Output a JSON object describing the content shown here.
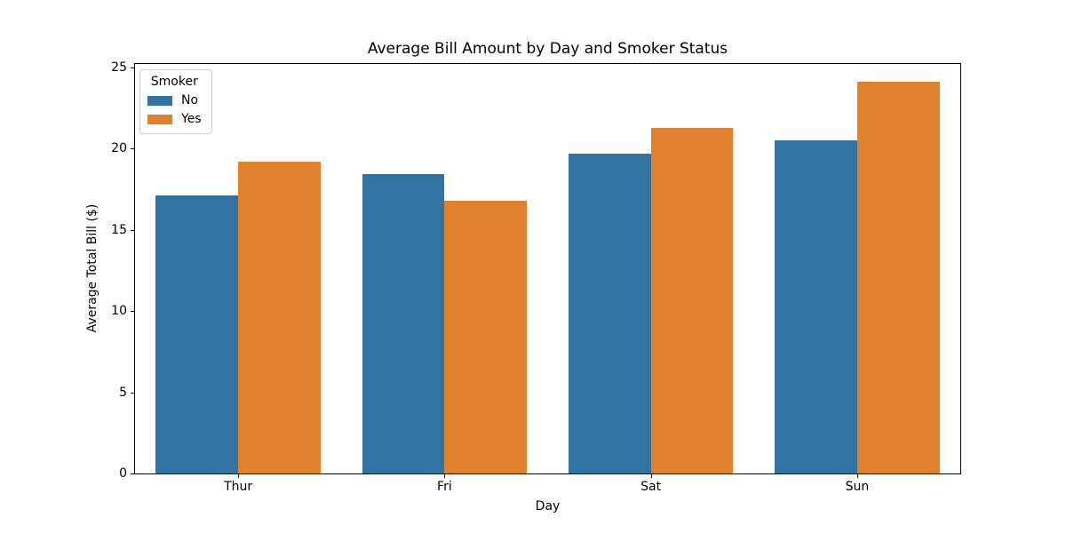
{
  "chart_data": {
    "type": "bar",
    "title": "Average Bill Amount by Day and Smoker Status",
    "xlabel": "Day",
    "ylabel": "Average Total Bill ($)",
    "categories": [
      "Thur",
      "Fri",
      "Sat",
      "Sun"
    ],
    "series": [
      {
        "name": "No",
        "color": "#3274a1",
        "values": [
          17.11,
          18.42,
          19.66,
          20.51
        ]
      },
      {
        "name": "Yes",
        "color": "#e1812c",
        "values": [
          19.19,
          16.81,
          21.28,
          24.12
        ]
      }
    ],
    "ylim": [
      0,
      25.2
    ],
    "yticks": [
      0,
      5,
      10,
      15,
      20,
      25
    ],
    "legend_title": "Smoker",
    "legend_position": "upper left",
    "grid": false,
    "bar_group_width_fraction": 0.8,
    "spine_color": "#000000"
  }
}
